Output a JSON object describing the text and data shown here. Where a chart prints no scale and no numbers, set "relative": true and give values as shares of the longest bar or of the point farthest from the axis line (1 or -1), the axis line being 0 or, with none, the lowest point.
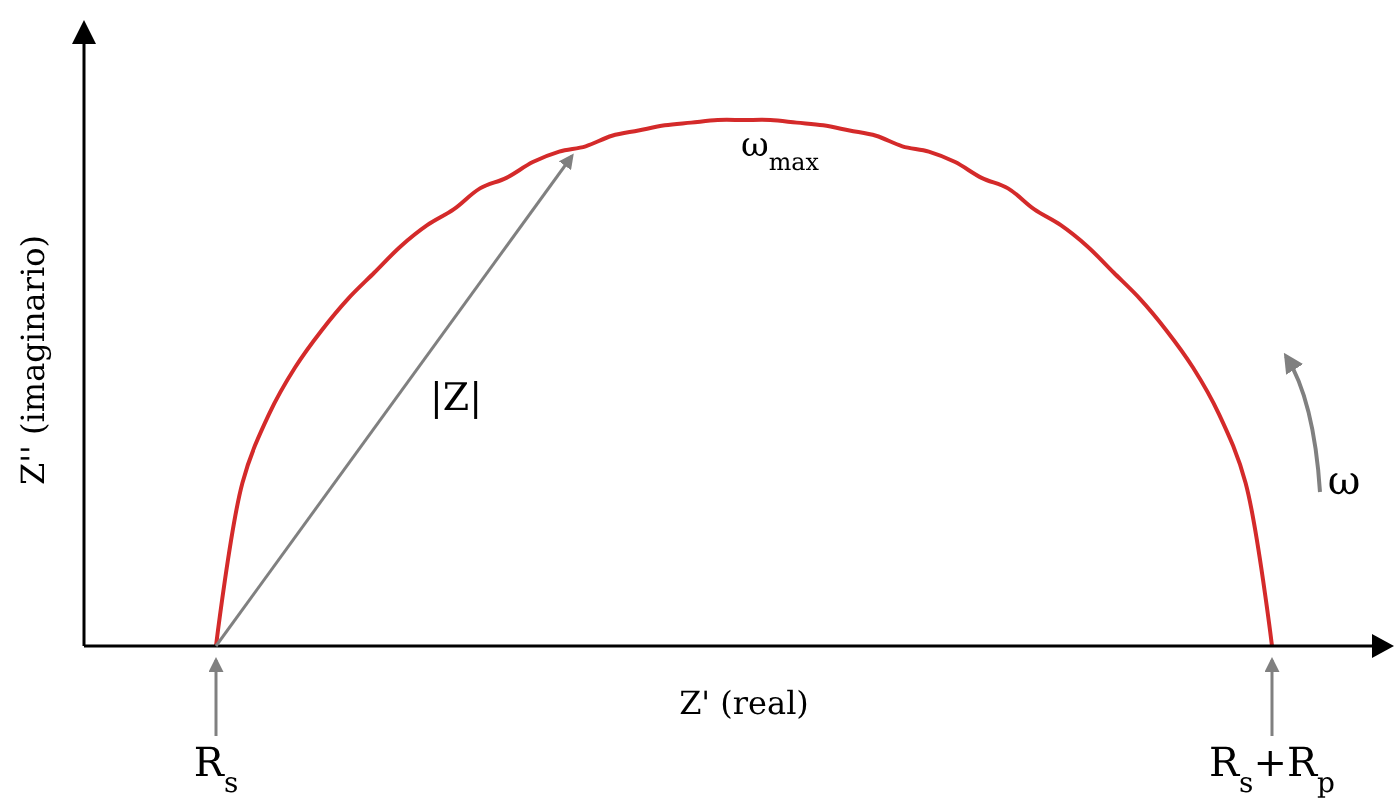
{
  "chart_data": {
    "type": "line",
    "relative": true,
    "xlabel": "Z' (real)",
    "ylabel": "Z'' (imaginario)",
    "categories": [
      null,
      null,
      null,
      null,
      null,
      null,
      null,
      null,
      null,
      null,
      null,
      null,
      null,
      null,
      null,
      null,
      null,
      null,
      null,
      null,
      null,
      null,
      null,
      null,
      null,
      null,
      null,
      null,
      null,
      null,
      null,
      null,
      null,
      null,
      null,
      null,
      null,
      null,
      null,
      null,
      null
    ],
    "series": [
      {
        "color": "#d42a2a",
        "values": [
          0,
          0.31,
          0.44,
          0.53,
          0.6,
          0.66,
          0.71,
          0.76,
          0.8,
          0.83,
          0.87,
          0.89,
          0.92,
          0.94,
          0.95,
          0.97,
          0.98,
          0.99,
          0.995,
          1,
          1,
          1,
          0.995,
          0.99,
          0.98,
          0.97,
          0.95,
          0.94,
          0.92,
          0.89,
          0.87,
          0.83,
          0.8,
          0.76,
          0.71,
          0.66,
          0.6,
          0.53,
          0.44,
          0.31,
          0
        ]
      }
    ],
    "annotations": [
      "ω$_{max}$",
      "|Z|",
      "ω",
      "R$_{s}$",
      "R$_{s}$+R$_{p}$"
    ]
  }
}
